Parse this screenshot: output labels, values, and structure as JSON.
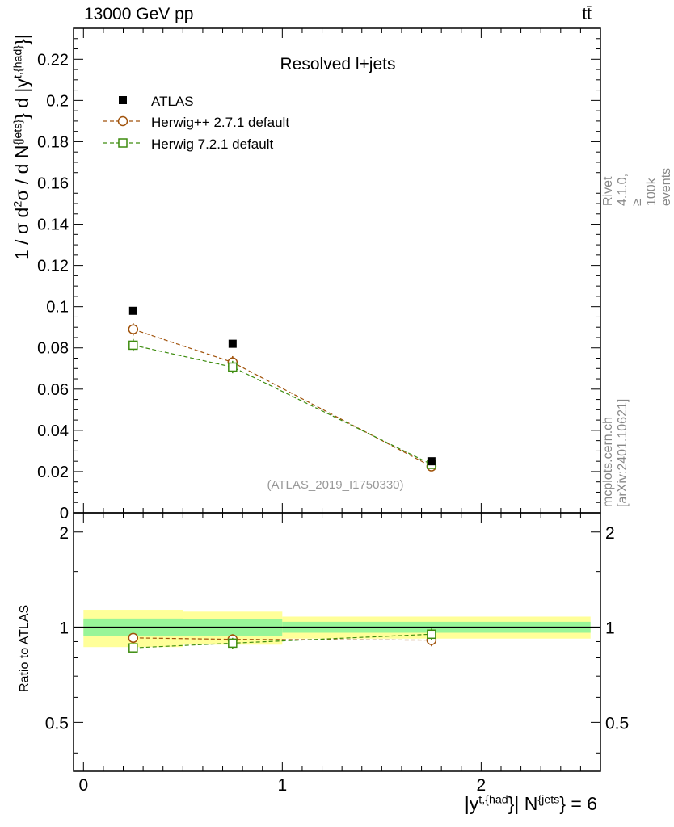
{
  "header": {
    "left": "13000 GeV pp",
    "right": "tt̄"
  },
  "side_labels": {
    "rivet": "Rivet 4.1.0, ≥ 100k events",
    "mcplots": "mcplots.cern.ch [arXiv:2401.10621]"
  },
  "colors": {
    "atlas": "#000000",
    "herwigpp": "#a0520a",
    "herwig7": "#3d8c0f",
    "band_inner": "#98f598",
    "band_outer": "#ffff99",
    "watermark": "#999999"
  },
  "chart_data": [
    {
      "type": "scatter",
      "panel": "main",
      "title": "Resolved l+jets",
      "watermark": "(ATLAS_2019_I1750330)",
      "ylabel": {
        "prefix": "1 / σ d",
        "sup1": "2",
        "mid": "σ / d N",
        "sup2": "{jets}",
        "mid2": "} d |y",
        "sup3": "t,{had}",
        "suffix": "}|"
      },
      "ylim": [
        0,
        0.235
      ],
      "y_ticks": [
        "0",
        "0.02",
        "0.04",
        "0.06",
        "0.08",
        "0.1",
        "0.12",
        "0.14",
        "0.16",
        "0.18",
        "0.2",
        "0.22"
      ],
      "y_tick_values": [
        0,
        0.02,
        0.04,
        0.06,
        0.08,
        0.1,
        0.12,
        0.14,
        0.16,
        0.18,
        0.2,
        0.22
      ],
      "xlim": [
        -0.05,
        2.6
      ],
      "x": [
        0.25,
        0.75,
        1.75
      ],
      "legend_position": "top-left",
      "series": [
        {
          "name": "ATLAS",
          "marker": "filled-square",
          "values": [
            0.098,
            0.082,
            0.025
          ],
          "err": [
            0.0008,
            0.0008,
            0.0008
          ]
        },
        {
          "name": "Herwig++ 2.7.1 default",
          "marker": "open-circle",
          "line": "dashed",
          "values": [
            0.089,
            0.073,
            0.0225
          ],
          "err": [
            0.003,
            0.003,
            0.0012
          ]
        },
        {
          "name": "Herwig 7.2.1 default",
          "marker": "open-square",
          "line": "dashed",
          "values": [
            0.0813,
            0.0707,
            0.0235
          ],
          "err": [
            0.003,
            0.003,
            0.0012
          ]
        }
      ]
    },
    {
      "type": "scatter",
      "panel": "ratio",
      "ylabel": "Ratio to ATLAS",
      "ylim": [
        0.35,
        2.3
      ],
      "y_ticks": [
        "0.5",
        "1",
        "2"
      ],
      "y_tick_values": [
        0.5,
        1,
        2
      ],
      "x_ticks": [
        "0",
        "1",
        "2"
      ],
      "x_tick_values": [
        0,
        1,
        2
      ],
      "xlim": [
        -0.05,
        2.6
      ],
      "xlabel": {
        "a": "|y",
        "sup1": "t,{had",
        "b": "}| N",
        "sup2": "{jets",
        "c": "} = 6"
      },
      "bins": [
        {
          "x_range": [
            0,
            0.5
          ],
          "inner": [
            0.935,
            1.065
          ],
          "outer": [
            0.865,
            1.135
          ]
        },
        {
          "x_range": [
            0.5,
            1.0
          ],
          "inner": [
            0.94,
            1.06
          ],
          "outer": [
            0.88,
            1.12
          ]
        },
        {
          "x_range": [
            1.0,
            2.55
          ],
          "inner": [
            0.96,
            1.04
          ],
          "outer": [
            0.92,
            1.08
          ]
        }
      ],
      "x": [
        0.25,
        0.75,
        1.75
      ],
      "series": [
        {
          "name": "Herwig++ 2.7.1 default",
          "values": [
            0.925,
            0.915,
            0.91
          ],
          "err": [
            0.03,
            0.035,
            0.04
          ]
        },
        {
          "name": "Herwig 7.2.1 default",
          "values": [
            0.86,
            0.89,
            0.95
          ],
          "err": [
            0.03,
            0.035,
            0.04
          ]
        }
      ]
    }
  ]
}
